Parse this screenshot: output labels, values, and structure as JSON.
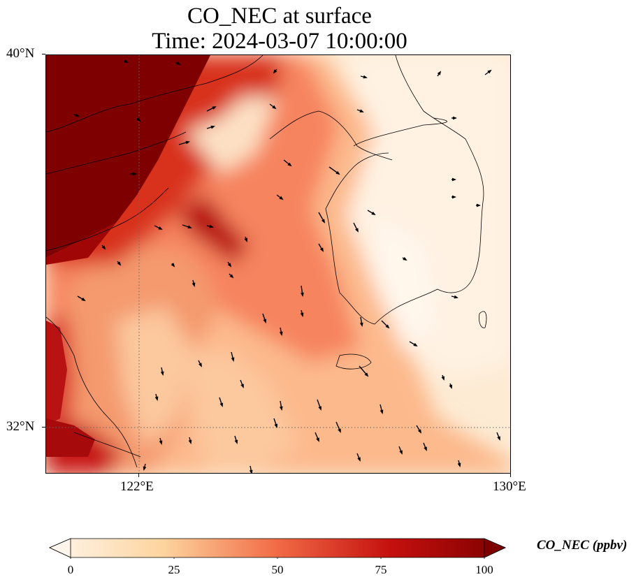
{
  "title": {
    "line1": "CO_NEC at surface",
    "line2": "Time: 2024-03-07 10:00:00"
  },
  "axes": {
    "lat_ticks": [
      {
        "label": "40°N",
        "value": 40
      },
      {
        "label": "32°N",
        "value": 32
      }
    ],
    "lon_ticks": [
      {
        "label": "122°E",
        "value": 122
      },
      {
        "label": "130°E",
        "value": 130
      }
    ],
    "lon_range": [
      120,
      130
    ],
    "lat_range": [
      31,
      40
    ],
    "gridlines": "dotted"
  },
  "colorbar": {
    "label": "CO_NEC (ppbv)",
    "ticks": [
      0,
      25,
      50,
      75,
      100
    ],
    "range": [
      0,
      100
    ],
    "extend": "both",
    "colormap": [
      "#fff5eb",
      "#fdd49e",
      "#f16a45",
      "#c4100e",
      "#7f0000"
    ]
  },
  "legend": "colorbar at bottom"
}
